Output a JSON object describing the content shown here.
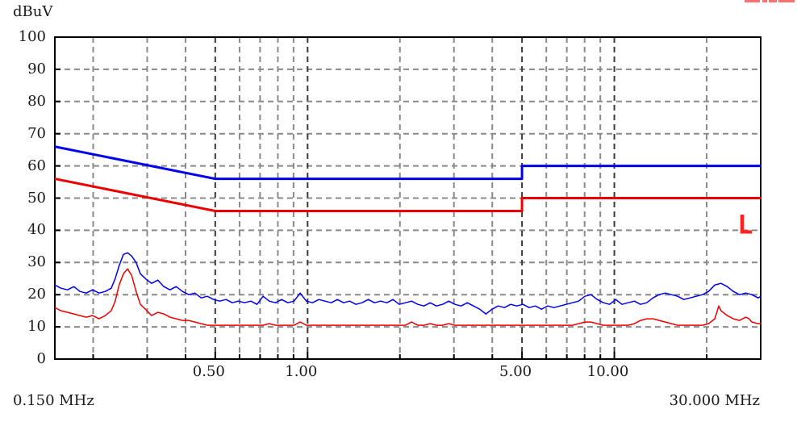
{
  "title": "dBuV",
  "bottom_left_label": "0.150 MHz",
  "bottom_right_label": "30.000 MHz",
  "marker": {
    "label": "L",
    "color": "#ff2020",
    "freq_mhz": 25.2,
    "level_dbuv": 39
  },
  "top_right_clipped_text": {
    "color": "#ff7070",
    "segments": [
      [
        923,
        19
      ],
      [
        945,
        6
      ],
      [
        953,
        10
      ],
      [
        965,
        20
      ]
    ]
  },
  "chart_data": {
    "type": "line",
    "title": "",
    "xlabel": "MHz",
    "ylabel": "dBuV",
    "x_scale": "log",
    "xlim": [
      0.15,
      30
    ],
    "ylim": [
      0,
      100
    ],
    "grid_on": true,
    "colors": {
      "blue": "#0000ee",
      "red": "#ee0000",
      "grid_minor": "#8a8a8a",
      "grid_major": "#3a3a3a",
      "frame": "#000000"
    },
    "y_tick_labels": [
      {
        "value": 100,
        "label": "100"
      },
      {
        "value": 90,
        "label": "90"
      },
      {
        "value": 80,
        "label": "80"
      },
      {
        "value": 70,
        "label": "70"
      },
      {
        "value": 60,
        "label": "60"
      },
      {
        "value": 50,
        "label": "50"
      },
      {
        "value": 40,
        "label": "40"
      },
      {
        "value": 30,
        "label": "30"
      },
      {
        "value": 20,
        "label": "20"
      },
      {
        "value": 10,
        "label": "10"
      },
      {
        "value": 0,
        "label": "0"
      }
    ],
    "x_tick_labels": [
      {
        "value": 0.5,
        "label": "0.50"
      },
      {
        "value": 1,
        "label": "1.00"
      },
      {
        "value": 5,
        "label": "5.00"
      },
      {
        "value": 10,
        "label": "10.00"
      }
    ],
    "grid_x_minor": [
      0.2,
      0.3,
      0.4,
      0.6,
      0.7,
      0.8,
      0.9,
      2,
      3,
      4,
      6,
      7,
      8,
      9,
      20
    ],
    "grid_x_major": [
      0.5,
      1,
      5,
      10
    ],
    "grid_y": [
      10,
      20,
      30,
      40,
      50,
      60,
      70,
      80,
      90
    ],
    "series": [
      {
        "name": "blue-limit-line",
        "color": "#0000ee",
        "width": 3,
        "points": [
          [
            0.15,
            66
          ],
          [
            0.5,
            56
          ],
          [
            5,
            56
          ],
          [
            5,
            60
          ],
          [
            30,
            60
          ]
        ]
      },
      {
        "name": "red-limit-line",
        "color": "#ee0000",
        "width": 3,
        "points": [
          [
            0.15,
            56
          ],
          [
            0.5,
            46
          ],
          [
            5,
            46
          ],
          [
            5,
            50
          ],
          [
            30,
            50
          ]
        ]
      },
      {
        "name": "blue-trace",
        "color": "#0000ee",
        "width": 1.5,
        "points": [
          [
            0.15,
            23.0
          ],
          [
            0.157,
            22.0
          ],
          [
            0.165,
            21.5
          ],
          [
            0.173,
            22.5
          ],
          [
            0.181,
            21.0
          ],
          [
            0.19,
            20.5
          ],
          [
            0.199,
            21.5
          ],
          [
            0.209,
            20.5
          ],
          [
            0.219,
            21.0
          ],
          [
            0.229,
            22.0
          ],
          [
            0.236,
            25.0
          ],
          [
            0.243,
            29.0
          ],
          [
            0.251,
            32.5
          ],
          [
            0.259,
            33.0
          ],
          [
            0.267,
            32.0
          ],
          [
            0.276,
            30.0
          ],
          [
            0.285,
            26.5
          ],
          [
            0.296,
            25.0
          ],
          [
            0.31,
            23.5
          ],
          [
            0.325,
            24.5
          ],
          [
            0.34,
            22.5
          ],
          [
            0.356,
            21.5
          ],
          [
            0.373,
            22.5
          ],
          [
            0.391,
            21.0
          ],
          [
            0.41,
            20.0
          ],
          [
            0.429,
            20.5
          ],
          [
            0.45,
            19.0
          ],
          [
            0.471,
            19.5
          ],
          [
            0.494,
            18.5
          ],
          [
            0.517,
            18.0
          ],
          [
            0.542,
            18.5
          ],
          [
            0.568,
            17.5
          ],
          [
            0.595,
            18.0
          ],
          [
            0.623,
            17.5
          ],
          [
            0.653,
            18.0
          ],
          [
            0.684,
            17.0
          ],
          [
            0.716,
            19.5
          ],
          [
            0.75,
            18.0
          ],
          [
            0.786,
            17.5
          ],
          [
            0.823,
            18.5
          ],
          [
            0.862,
            17.5
          ],
          [
            0.903,
            18.0
          ],
          [
            0.946,
            20.5
          ],
          [
            0.991,
            18.0
          ],
          [
            1.038,
            17.5
          ],
          [
            1.088,
            18.5
          ],
          [
            1.139,
            18.0
          ],
          [
            1.194,
            17.5
          ],
          [
            1.25,
            18.5
          ],
          [
            1.31,
            17.5
          ],
          [
            1.372,
            18.0
          ],
          [
            1.437,
            17.0
          ],
          [
            1.506,
            17.5
          ],
          [
            1.577,
            18.5
          ],
          [
            1.652,
            17.5
          ],
          [
            1.731,
            18.0
          ],
          [
            1.813,
            17.5
          ],
          [
            1.899,
            18.5
          ],
          [
            1.99,
            17.0
          ],
          [
            2.084,
            17.5
          ],
          [
            2.183,
            18.0
          ],
          [
            2.287,
            17.0
          ],
          [
            2.396,
            16.5
          ],
          [
            2.51,
            17.5
          ],
          [
            2.629,
            16.5
          ],
          [
            2.754,
            17.0
          ],
          [
            2.885,
            18.0
          ],
          [
            3.022,
            17.0
          ],
          [
            3.166,
            16.5
          ],
          [
            3.316,
            17.5
          ],
          [
            3.474,
            16.5
          ],
          [
            3.639,
            15.5
          ],
          [
            3.812,
            14.0
          ],
          [
            3.993,
            15.5
          ],
          [
            4.183,
            16.5
          ],
          [
            4.382,
            16.0
          ],
          [
            4.59,
            17.0
          ],
          [
            4.808,
            16.5
          ],
          [
            5.037,
            17.0
          ],
          [
            5.276,
            16.0
          ],
          [
            5.527,
            16.5
          ],
          [
            5.79,
            15.5
          ],
          [
            6.065,
            16.5
          ],
          [
            6.353,
            16.0
          ],
          [
            6.655,
            16.5
          ],
          [
            6.972,
            17.0
          ],
          [
            7.303,
            17.5
          ],
          [
            7.65,
            18.0
          ],
          [
            8.014,
            19.5
          ],
          [
            8.395,
            20.0
          ],
          [
            8.794,
            18.5
          ],
          [
            9.212,
            17.5
          ],
          [
            9.65,
            17.0
          ],
          [
            10.11,
            18.5
          ],
          [
            10.59,
            17.0
          ],
          [
            11.09,
            17.5
          ],
          [
            11.62,
            18.0
          ],
          [
            12.17,
            17.0
          ],
          [
            12.75,
            17.5
          ],
          [
            13.36,
            19.0
          ],
          [
            13.99,
            20.0
          ],
          [
            14.66,
            20.5
          ],
          [
            15.36,
            20.0
          ],
          [
            16.09,
            19.5
          ],
          [
            16.85,
            18.5
          ],
          [
            17.65,
            19.0
          ],
          [
            18.49,
            19.5
          ],
          [
            19.37,
            20.0
          ],
          [
            20.29,
            21.0
          ],
          [
            21.26,
            23.0
          ],
          [
            22.27,
            23.5
          ],
          [
            23.33,
            22.5
          ],
          [
            24.44,
            21.0
          ],
          [
            25.6,
            20.0
          ],
          [
            26.82,
            20.5
          ],
          [
            28.09,
            20.0
          ],
          [
            29.43,
            19.0
          ],
          [
            30.0,
            19.5
          ]
        ]
      },
      {
        "name": "red-trace",
        "color": "#ee0000",
        "width": 1.5,
        "points": [
          [
            0.15,
            16.0
          ],
          [
            0.157,
            15.0
          ],
          [
            0.165,
            14.5
          ],
          [
            0.173,
            14.0
          ],
          [
            0.181,
            13.5
          ],
          [
            0.19,
            13.0
          ],
          [
            0.199,
            13.5
          ],
          [
            0.209,
            12.5
          ],
          [
            0.219,
            13.5
          ],
          [
            0.229,
            15.0
          ],
          [
            0.236,
            18.0
          ],
          [
            0.243,
            23.0
          ],
          [
            0.251,
            26.5
          ],
          [
            0.259,
            28.0
          ],
          [
            0.267,
            26.0
          ],
          [
            0.276,
            21.0
          ],
          [
            0.285,
            17.0
          ],
          [
            0.296,
            15.5
          ],
          [
            0.31,
            13.5
          ],
          [
            0.325,
            14.5
          ],
          [
            0.34,
            14.0
          ],
          [
            0.356,
            13.0
          ],
          [
            0.373,
            12.5
          ],
          [
            0.391,
            12.0
          ],
          [
            0.41,
            12.0
          ],
          [
            0.429,
            11.5
          ],
          [
            0.45,
            11.0
          ],
          [
            0.471,
            10.5
          ],
          [
            0.494,
            10.5
          ],
          [
            0.517,
            10.5
          ],
          [
            0.542,
            10.5
          ],
          [
            0.568,
            10.5
          ],
          [
            0.595,
            10.5
          ],
          [
            0.623,
            10.5
          ],
          [
            0.653,
            10.5
          ],
          [
            0.684,
            10.5
          ],
          [
            0.716,
            10.5
          ],
          [
            0.75,
            11.0
          ],
          [
            0.786,
            10.5
          ],
          [
            0.823,
            10.5
          ],
          [
            0.862,
            10.5
          ],
          [
            0.903,
            10.5
          ],
          [
            0.946,
            11.5
          ],
          [
            0.991,
            10.5
          ],
          [
            1.038,
            10.5
          ],
          [
            1.088,
            10.5
          ],
          [
            1.139,
            10.5
          ],
          [
            1.194,
            10.5
          ],
          [
            1.25,
            10.5
          ],
          [
            1.31,
            10.5
          ],
          [
            1.372,
            10.5
          ],
          [
            1.437,
            10.5
          ],
          [
            1.506,
            10.5
          ],
          [
            1.577,
            10.5
          ],
          [
            1.652,
            10.5
          ],
          [
            1.731,
            10.5
          ],
          [
            1.813,
            10.5
          ],
          [
            1.899,
            10.5
          ],
          [
            1.99,
            10.5
          ],
          [
            2.084,
            10.5
          ],
          [
            2.183,
            11.5
          ],
          [
            2.287,
            10.5
          ],
          [
            2.396,
            10.5
          ],
          [
            2.51,
            11.0
          ],
          [
            2.629,
            10.5
          ],
          [
            2.754,
            10.5
          ],
          [
            2.885,
            11.0
          ],
          [
            3.022,
            10.5
          ],
          [
            3.166,
            10.5
          ],
          [
            3.316,
            10.5
          ],
          [
            3.474,
            10.5
          ],
          [
            3.639,
            10.5
          ],
          [
            3.812,
            10.5
          ],
          [
            3.993,
            10.5
          ],
          [
            4.183,
            10.5
          ],
          [
            4.382,
            10.5
          ],
          [
            4.59,
            10.5
          ],
          [
            4.808,
            10.5
          ],
          [
            5.037,
            10.5
          ],
          [
            5.276,
            10.5
          ],
          [
            5.527,
            10.5
          ],
          [
            5.79,
            10.5
          ],
          [
            6.065,
            10.5
          ],
          [
            6.353,
            10.5
          ],
          [
            6.655,
            10.5
          ],
          [
            6.972,
            10.5
          ],
          [
            7.303,
            10.5
          ],
          [
            7.65,
            11.0
          ],
          [
            8.014,
            11.5
          ],
          [
            8.395,
            11.5
          ],
          [
            8.794,
            11.0
          ],
          [
            9.212,
            10.5
          ],
          [
            9.65,
            10.5
          ],
          [
            10.11,
            10.5
          ],
          [
            10.59,
            10.5
          ],
          [
            11.09,
            10.5
          ],
          [
            11.62,
            11.0
          ],
          [
            12.17,
            12.0
          ],
          [
            12.75,
            12.5
          ],
          [
            13.36,
            12.5
          ],
          [
            13.99,
            12.0
          ],
          [
            14.66,
            11.5
          ],
          [
            15.36,
            11.0
          ],
          [
            16.09,
            10.5
          ],
          [
            16.85,
            10.5
          ],
          [
            17.65,
            10.5
          ],
          [
            18.49,
            10.5
          ],
          [
            19.37,
            10.5
          ],
          [
            20.29,
            11.0
          ],
          [
            21.26,
            12.5
          ],
          [
            21.9,
            16.5
          ],
          [
            22.27,
            15.0
          ],
          [
            23.33,
            13.5
          ],
          [
            24.44,
            12.5
          ],
          [
            25.6,
            12.0
          ],
          [
            26.82,
            13.0
          ],
          [
            27.5,
            12.5
          ],
          [
            28.09,
            11.5
          ],
          [
            29.43,
            11.0
          ],
          [
            30.0,
            11.0
          ]
        ]
      }
    ]
  }
}
